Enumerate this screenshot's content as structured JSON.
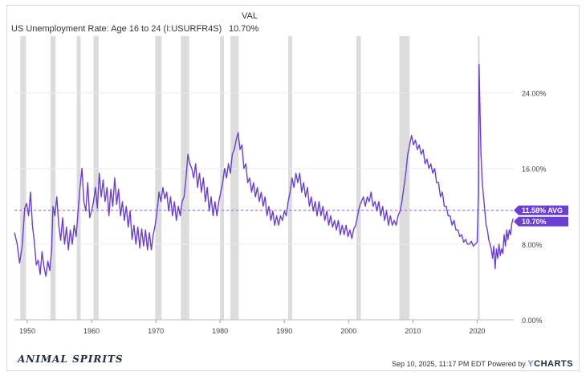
{
  "header": {
    "value_column_label": "VAL",
    "series_name": "US Unemployment Rate: Age 16 to 24 (I:USURFR4S)",
    "series_value": "10.70%"
  },
  "footer": {
    "logo_text": "ANIMAL SPIRITS",
    "timestamp": "Sep 10, 2025, 11:17 PM EDT Powered by",
    "brand_prefix": "",
    "brand_y": "Y",
    "brand_rest": "CHARTS"
  },
  "colors": {
    "series": "#6a3fd3",
    "recession": "#dcdcdc",
    "grid": "#ececec",
    "avg_line": "#8b5cf6",
    "label_bg": "#6a3fd3"
  },
  "chart_data": {
    "type": "line",
    "title": "US Unemployment Rate: Age 16 to 24 (I:USURFR4S)",
    "xlabel": "",
    "ylabel": "",
    "xlim": [
      1948,
      2025.7
    ],
    "ylim": [
      0,
      30
    ],
    "x_ticks": [
      1950,
      1960,
      1970,
      1980,
      1990,
      2000,
      2010,
      2020
    ],
    "x_tick_labels": [
      "1950",
      "1960",
      "1970",
      "1980",
      "1990",
      "2000",
      "2010",
      "2020"
    ],
    "y_ticks": [
      0,
      8,
      16,
      24
    ],
    "y_tick_labels": [
      "0.00%",
      "8.00%",
      "16.00%",
      "24.00%"
    ],
    "average": {
      "value": 11.58,
      "label": "11.58% AVG"
    },
    "last_value": {
      "value": 10.7,
      "label": "10.70%"
    },
    "grid": true,
    "recessions": [
      [
        1948.9,
        1949.8
      ],
      [
        1953.6,
        1954.4
      ],
      [
        1957.7,
        1958.3
      ],
      [
        1960.3,
        1961.1
      ],
      [
        1969.9,
        1970.9
      ],
      [
        1973.9,
        1975.2
      ],
      [
        1980.0,
        1980.6
      ],
      [
        1981.6,
        1982.9
      ],
      [
        1990.6,
        1991.2
      ],
      [
        2001.2,
        2001.9
      ],
      [
        2007.9,
        2009.5
      ],
      [
        2020.1,
        2020.4
      ]
    ],
    "series": [
      {
        "name": "US Unemployment Rate: Age 16 to 24",
        "points": [
          [
            1948.0,
            9.2
          ],
          [
            1948.4,
            8.1
          ],
          [
            1948.8,
            6.0
          ],
          [
            1949.2,
            7.8
          ],
          [
            1949.6,
            11.8
          ],
          [
            1949.9,
            12.3
          ],
          [
            1950.2,
            11.0
          ],
          [
            1950.5,
            13.5
          ],
          [
            1950.8,
            10.0
          ],
          [
            1951.1,
            8.2
          ],
          [
            1951.4,
            5.8
          ],
          [
            1951.7,
            6.3
          ],
          [
            1952.0,
            4.8
          ],
          [
            1952.3,
            7.2
          ],
          [
            1952.6,
            5.6
          ],
          [
            1952.9,
            4.6
          ],
          [
            1953.2,
            6.2
          ],
          [
            1953.5,
            5.2
          ],
          [
            1953.8,
            7.5
          ],
          [
            1954.0,
            12.0
          ],
          [
            1954.3,
            11.0
          ],
          [
            1954.6,
            13.0
          ],
          [
            1954.9,
            10.0
          ],
          [
            1955.2,
            8.4
          ],
          [
            1955.5,
            10.8
          ],
          [
            1955.8,
            8.0
          ],
          [
            1956.1,
            9.8
          ],
          [
            1956.4,
            7.4
          ],
          [
            1956.7,
            9.5
          ],
          [
            1957.0,
            8.0
          ],
          [
            1957.3,
            10.0
          ],
          [
            1957.6,
            8.8
          ],
          [
            1957.9,
            11.5
          ],
          [
            1958.2,
            14.0
          ],
          [
            1958.5,
            16.0
          ],
          [
            1958.8,
            12.5
          ],
          [
            1959.1,
            11.5
          ],
          [
            1959.4,
            14.5
          ],
          [
            1959.7,
            10.8
          ],
          [
            1960.0,
            11.5
          ],
          [
            1960.3,
            12.5
          ],
          [
            1960.6,
            14.0
          ],
          [
            1960.9,
            11.8
          ],
          [
            1961.2,
            15.5
          ],
          [
            1961.5,
            13.0
          ],
          [
            1961.8,
            14.8
          ],
          [
            1962.1,
            12.5
          ],
          [
            1962.4,
            14.0
          ],
          [
            1962.7,
            11.0
          ],
          [
            1963.0,
            13.8
          ],
          [
            1963.3,
            12.0
          ],
          [
            1963.6,
            15.0
          ],
          [
            1963.9,
            12.2
          ],
          [
            1964.2,
            13.8
          ],
          [
            1964.5,
            11.0
          ],
          [
            1964.8,
            12.5
          ],
          [
            1965.1,
            10.5
          ],
          [
            1965.4,
            12.0
          ],
          [
            1965.7,
            9.8
          ],
          [
            1966.0,
            11.5
          ],
          [
            1966.3,
            8.5
          ],
          [
            1966.6,
            10.0
          ],
          [
            1966.9,
            8.0
          ],
          [
            1967.2,
            9.8
          ],
          [
            1967.5,
            7.6
          ],
          [
            1967.8,
            9.6
          ],
          [
            1968.1,
            7.8
          ],
          [
            1968.4,
            9.5
          ],
          [
            1968.7,
            7.4
          ],
          [
            1969.0,
            9.2
          ],
          [
            1969.3,
            7.4
          ],
          [
            1969.6,
            9.0
          ],
          [
            1969.9,
            10.0
          ],
          [
            1970.2,
            11.5
          ],
          [
            1970.5,
            13.5
          ],
          [
            1970.8,
            12.5
          ],
          [
            1971.1,
            14.0
          ],
          [
            1971.4,
            12.8
          ],
          [
            1971.7,
            13.5
          ],
          [
            1972.0,
            11.5
          ],
          [
            1972.3,
            13.0
          ],
          [
            1972.6,
            11.0
          ],
          [
            1972.9,
            12.5
          ],
          [
            1973.2,
            10.5
          ],
          [
            1973.5,
            12.0
          ],
          [
            1973.8,
            11.0
          ],
          [
            1974.1,
            12.5
          ],
          [
            1974.4,
            13.0
          ],
          [
            1974.7,
            15.0
          ],
          [
            1975.0,
            17.5
          ],
          [
            1975.3,
            16.5
          ],
          [
            1975.6,
            16.0
          ],
          [
            1975.9,
            15.0
          ],
          [
            1976.2,
            16.5
          ],
          [
            1976.5,
            14.0
          ],
          [
            1976.8,
            15.5
          ],
          [
            1977.1,
            13.5
          ],
          [
            1977.4,
            15.0
          ],
          [
            1977.7,
            12.5
          ],
          [
            1978.0,
            14.0
          ],
          [
            1978.3,
            11.5
          ],
          [
            1978.6,
            13.0
          ],
          [
            1978.9,
            11.0
          ],
          [
            1979.2,
            12.5
          ],
          [
            1979.5,
            11.0
          ],
          [
            1979.8,
            12.5
          ],
          [
            1980.1,
            13.5
          ],
          [
            1980.4,
            14.5
          ],
          [
            1980.7,
            16.0
          ],
          [
            1981.0,
            15.0
          ],
          [
            1981.3,
            16.5
          ],
          [
            1981.6,
            15.5
          ],
          [
            1981.9,
            17.5
          ],
          [
            1982.2,
            18.0
          ],
          [
            1982.5,
            19.0
          ],
          [
            1982.8,
            19.8
          ],
          [
            1983.1,
            18.0
          ],
          [
            1983.4,
            18.5
          ],
          [
            1983.7,
            16.0
          ],
          [
            1984.0,
            16.5
          ],
          [
            1984.3,
            14.5
          ],
          [
            1984.6,
            15.0
          ],
          [
            1984.9,
            13.5
          ],
          [
            1985.2,
            14.5
          ],
          [
            1985.5,
            13.0
          ],
          [
            1985.8,
            14.0
          ],
          [
            1986.1,
            12.5
          ],
          [
            1986.4,
            13.5
          ],
          [
            1986.7,
            12.0
          ],
          [
            1987.0,
            13.0
          ],
          [
            1987.3,
            11.0
          ],
          [
            1987.6,
            12.0
          ],
          [
            1987.9,
            10.5
          ],
          [
            1988.2,
            11.5
          ],
          [
            1988.5,
            10.0
          ],
          [
            1988.8,
            11.0
          ],
          [
            1989.1,
            10.0
          ],
          [
            1989.4,
            11.0
          ],
          [
            1989.7,
            10.5
          ],
          [
            1990.0,
            11.5
          ],
          [
            1990.3,
            11.0
          ],
          [
            1990.6,
            12.5
          ],
          [
            1990.9,
            13.5
          ],
          [
            1991.2,
            15.0
          ],
          [
            1991.5,
            14.0
          ],
          [
            1991.8,
            15.5
          ],
          [
            1992.1,
            14.5
          ],
          [
            1992.4,
            15.5
          ],
          [
            1992.7,
            13.5
          ],
          [
            1993.0,
            14.5
          ],
          [
            1993.3,
            13.0
          ],
          [
            1993.6,
            14.0
          ],
          [
            1993.9,
            12.0
          ],
          [
            1994.2,
            13.0
          ],
          [
            1994.5,
            11.5
          ],
          [
            1994.8,
            12.5
          ],
          [
            1995.1,
            11.0
          ],
          [
            1995.4,
            12.5
          ],
          [
            1995.7,
            11.0
          ],
          [
            1996.0,
            12.0
          ],
          [
            1996.3,
            10.5
          ],
          [
            1996.6,
            11.5
          ],
          [
            1996.9,
            10.0
          ],
          [
            1997.2,
            11.0
          ],
          [
            1997.5,
            9.8
          ],
          [
            1997.8,
            10.5
          ],
          [
            1998.1,
            9.5
          ],
          [
            1998.4,
            10.5
          ],
          [
            1998.7,
            9.0
          ],
          [
            1999.0,
            10.0
          ],
          [
            1999.3,
            9.0
          ],
          [
            1999.6,
            10.0
          ],
          [
            1999.9,
            8.8
          ],
          [
            2000.2,
            9.5
          ],
          [
            2000.5,
            8.6
          ],
          [
            2000.8,
            9.6
          ],
          [
            2001.1,
            10.0
          ],
          [
            2001.4,
            11.0
          ],
          [
            2001.7,
            12.0
          ],
          [
            2002.0,
            12.5
          ],
          [
            2002.3,
            13.0
          ],
          [
            2002.6,
            12.0
          ],
          [
            2002.9,
            13.0
          ],
          [
            2003.2,
            12.5
          ],
          [
            2003.5,
            13.5
          ],
          [
            2003.8,
            12.0
          ],
          [
            2004.1,
            12.5
          ],
          [
            2004.4,
            11.5
          ],
          [
            2004.7,
            12.5
          ],
          [
            2005.0,
            11.0
          ],
          [
            2005.3,
            12.0
          ],
          [
            2005.6,
            10.5
          ],
          [
            2005.9,
            11.5
          ],
          [
            2006.2,
            10.0
          ],
          [
            2006.5,
            11.0
          ],
          [
            2006.8,
            10.0
          ],
          [
            2007.1,
            10.5
          ],
          [
            2007.4,
            10.0
          ],
          [
            2007.7,
            11.0
          ],
          [
            2008.0,
            11.5
          ],
          [
            2008.3,
            12.5
          ],
          [
            2008.6,
            14.0
          ],
          [
            2008.9,
            15.5
          ],
          [
            2009.2,
            17.5
          ],
          [
            2009.5,
            18.5
          ],
          [
            2009.8,
            19.5
          ],
          [
            2010.1,
            18.5
          ],
          [
            2010.4,
            19.0
          ],
          [
            2010.7,
            18.0
          ],
          [
            2011.0,
            18.5
          ],
          [
            2011.3,
            17.5
          ],
          [
            2011.6,
            18.0
          ],
          [
            2011.9,
            16.5
          ],
          [
            2012.2,
            17.0
          ],
          [
            2012.5,
            16.0
          ],
          [
            2012.8,
            16.5
          ],
          [
            2013.1,
            15.5
          ],
          [
            2013.4,
            16.0
          ],
          [
            2013.7,
            14.5
          ],
          [
            2014.0,
            14.5
          ],
          [
            2014.3,
            13.0
          ],
          [
            2014.6,
            13.5
          ],
          [
            2014.9,
            12.0
          ],
          [
            2015.2,
            12.0
          ],
          [
            2015.5,
            11.0
          ],
          [
            2015.8,
            11.0
          ],
          [
            2016.1,
            10.0
          ],
          [
            2016.4,
            10.5
          ],
          [
            2016.7,
            9.5
          ],
          [
            2017.0,
            9.5
          ],
          [
            2017.3,
            8.8
          ],
          [
            2017.6,
            9.0
          ],
          [
            2017.9,
            8.2
          ],
          [
            2018.2,
            8.5
          ],
          [
            2018.5,
            8.0
          ],
          [
            2018.8,
            8.0
          ],
          [
            2019.1,
            8.3
          ],
          [
            2019.4,
            7.8
          ],
          [
            2019.7,
            8.0
          ],
          [
            2020.0,
            8.2
          ],
          [
            2020.2,
            13.5
          ],
          [
            2020.3,
            27.0
          ],
          [
            2020.45,
            22.0
          ],
          [
            2020.6,
            17.5
          ],
          [
            2020.8,
            14.5
          ],
          [
            2021.0,
            13.0
          ],
          [
            2021.2,
            11.5
          ],
          [
            2021.4,
            10.0
          ],
          [
            2021.6,
            9.5
          ],
          [
            2021.8,
            8.5
          ],
          [
            2022.0,
            8.0
          ],
          [
            2022.2,
            7.5
          ],
          [
            2022.4,
            6.5
          ],
          [
            2022.6,
            7.8
          ],
          [
            2022.8,
            5.4
          ],
          [
            2023.0,
            7.5
          ],
          [
            2023.2,
            6.5
          ],
          [
            2023.4,
            8.0
          ],
          [
            2023.6,
            6.8
          ],
          [
            2023.8,
            7.5
          ],
          [
            2024.0,
            7.0
          ],
          [
            2024.2,
            9.0
          ],
          [
            2024.4,
            7.8
          ],
          [
            2024.6,
            9.5
          ],
          [
            2024.8,
            8.5
          ],
          [
            2025.0,
            9.5
          ],
          [
            2025.2,
            9.0
          ],
          [
            2025.4,
            10.2
          ],
          [
            2025.6,
            10.7
          ]
        ]
      }
    ]
  }
}
